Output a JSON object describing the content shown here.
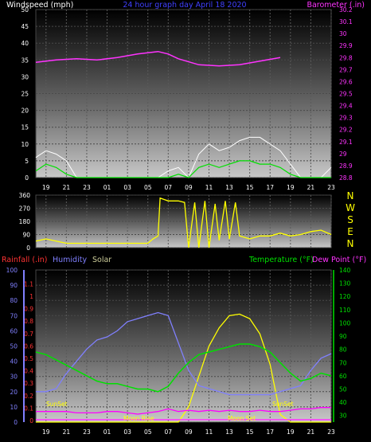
{
  "chart_data": [
    {
      "id": "wind",
      "type": "line",
      "title": "24 hour graph day   April 18 2020",
      "left_label": "Windspeed (mph)",
      "right_label": "Barometer (.in)",
      "x_ticks": [
        "19",
        "21",
        "23",
        "01",
        "03",
        "05",
        "07",
        "09",
        "11",
        "13",
        "15",
        "17",
        "19",
        "21",
        "23"
      ],
      "ylim_left": [
        0,
        50
      ],
      "y_ticks_left": [
        "0",
        "5",
        "10",
        "15",
        "20",
        "25",
        "30",
        "35",
        "40",
        "45",
        "50"
      ],
      "ylim_right": [
        28.8,
        30.2
      ],
      "y_ticks_right": [
        "28.8",
        "28.9",
        "29",
        "29.1",
        "29.2",
        "29.3",
        "29.4",
        "29.5",
        "29.6",
        "29.7",
        "29.8",
        "29.9",
        "30",
        "30.1",
        "30.2"
      ],
      "colors": {
        "gust": "#ffffff",
        "wind": "#00e000",
        "barometer": "#ff33ff"
      },
      "x_hours": [
        0,
        2,
        4,
        6,
        8,
        10,
        12,
        13,
        14,
        16,
        18,
        20,
        22,
        24
      ],
      "barometer": [
        29.76,
        29.78,
        29.79,
        29.78,
        29.8,
        29.83,
        29.85,
        29.83,
        29.79,
        29.74,
        29.73,
        29.74,
        29.77,
        29.8
      ],
      "wind_hours": [
        0,
        1,
        2,
        3,
        4,
        12,
        13,
        14,
        15,
        16,
        17,
        18,
        19,
        20,
        21,
        22,
        23,
        24,
        25,
        26,
        27,
        28,
        29
      ],
      "gust": [
        6,
        8,
        7,
        5,
        0,
        0,
        2,
        3,
        0,
        7,
        10,
        8,
        9,
        11,
        12,
        12,
        10,
        8,
        4,
        0,
        0,
        0,
        3
      ],
      "wind": [
        2,
        4,
        3,
        1,
        0,
        0,
        0,
        1,
        0,
        3,
        4,
        3,
        4,
        5,
        5,
        4,
        4,
        3,
        1,
        0,
        0,
        0,
        0
      ]
    },
    {
      "id": "dir",
      "type": "line",
      "ylim": [
        0,
        360
      ],
      "y_ticks": [
        "0",
        "90",
        "180",
        "270",
        "360"
      ],
      "compass": [
        "N",
        "W",
        "S",
        "E",
        "N"
      ],
      "color": "#ffff00",
      "x_hours": [
        0,
        1,
        3,
        5,
        7,
        9,
        11,
        11.5,
        12,
        12.2,
        12.6,
        13,
        13.6,
        14,
        14.6,
        15,
        15.6,
        16,
        16.6,
        17,
        17.6,
        18,
        18.6,
        19,
        19.6,
        20,
        21,
        22,
        23,
        24,
        25,
        26,
        27,
        28,
        29
      ],
      "values": [
        45,
        60,
        30,
        30,
        30,
        30,
        30,
        60,
        80,
        340,
        330,
        320,
        320,
        320,
        310,
        0,
        310,
        0,
        320,
        0,
        300,
        50,
        320,
        60,
        310,
        80,
        60,
        80,
        80,
        100,
        80,
        90,
        110,
        120,
        90
      ]
    },
    {
      "id": "temp",
      "type": "line",
      "left_label": "Rainfall (.in)",
      "humidity_label": "Humidity",
      "solar_label": "Solar",
      "temp_label": "Temperature (°F)",
      "dew_label": "Dew Point (°F)",
      "x_ticks": [
        "19",
        "21",
        "23",
        "01",
        "03",
        "05",
        "07",
        "09",
        "11",
        "13",
        "15",
        "17",
        "19",
        "21",
        "23"
      ],
      "rain_ticks": [
        "0",
        "0.1",
        "0.2",
        "0.3",
        "0.4",
        "0.5",
        "0.6",
        "0.7",
        "0.8",
        "0.9",
        "1",
        "1.1"
      ],
      "hum_ticks": [
        "0",
        "10",
        "20",
        "30",
        "40",
        "50",
        "60",
        "70",
        "80",
        "90",
        "100"
      ],
      "temp_ticks": [
        "30",
        "40",
        "50",
        "60",
        "70",
        "80",
        "90",
        "100",
        "110",
        "120",
        "130",
        "140"
      ],
      "ylim_hum": [
        0,
        100
      ],
      "ylim_temp": [
        25,
        140
      ],
      "colors": {
        "rain": "#ff33ff",
        "humidity": "#8080ff",
        "solar": "#ffff00",
        "temp": "#00e000",
        "dew": "#ff00ff",
        "rain_label": "#ff3333",
        "solar_label": "#cccc99"
      },
      "x_hours": [
        0,
        1,
        2,
        3,
        4,
        5,
        6,
        7,
        8,
        9,
        10,
        11,
        12,
        13,
        14,
        15,
        16,
        17,
        18,
        19,
        20,
        21,
        22,
        23,
        24,
        25,
        26,
        27,
        28,
        29
      ],
      "temperature": [
        78,
        76,
        72,
        68,
        64,
        60,
        56,
        54,
        54,
        52,
        50,
        50,
        48,
        52,
        62,
        70,
        76,
        78,
        80,
        82,
        84,
        84,
        82,
        78,
        70,
        62,
        56,
        58,
        62,
        60
      ],
      "humidity": [
        20,
        20,
        22,
        32,
        40,
        48,
        54,
        56,
        60,
        66,
        68,
        70,
        72,
        70,
        52,
        34,
        24,
        22,
        20,
        18,
        18,
        18,
        18,
        18,
        20,
        22,
        24,
        34,
        42,
        45
      ],
      "dewpoint": [
        33,
        33,
        33,
        33,
        32,
        32,
        32,
        33,
        33,
        32,
        31,
        32,
        33,
        35,
        33,
        34,
        33,
        34,
        33,
        34,
        33,
        33,
        34,
        33,
        33,
        34,
        35,
        35,
        36,
        36
      ],
      "solar": [
        0,
        0,
        0,
        0,
        0,
        0,
        0,
        0,
        0,
        0,
        0,
        0,
        0,
        0,
        0,
        10,
        30,
        50,
        62,
        70,
        71,
        68,
        58,
        38,
        5,
        0,
        0,
        0,
        0,
        0
      ],
      "annotations": [
        "SunSet",
        "Moon Rise",
        "Moon Set",
        "SunSet"
      ]
    }
  ]
}
